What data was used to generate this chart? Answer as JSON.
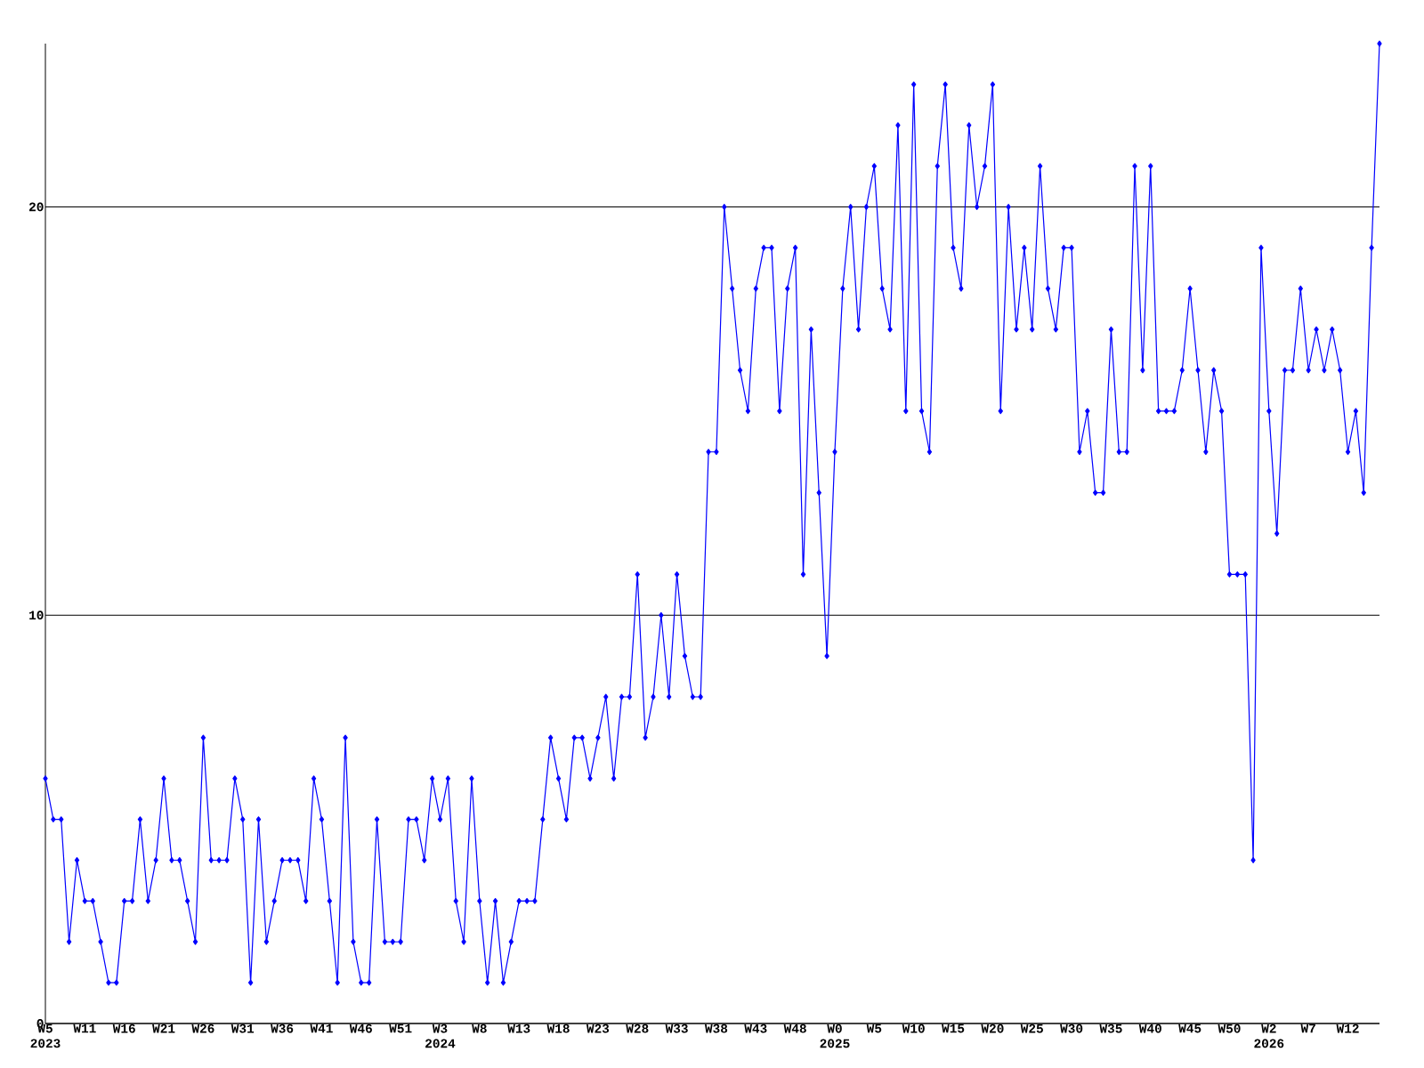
{
  "chart_data": {
    "type": "line",
    "categories": [
      "W5 2023",
      null,
      null,
      null,
      null,
      "W11",
      null,
      null,
      null,
      null,
      "W16",
      null,
      null,
      null,
      null,
      "W21",
      null,
      null,
      null,
      null,
      "W26",
      null,
      null,
      null,
      null,
      "W31",
      null,
      null,
      null,
      null,
      "W36",
      null,
      null,
      null,
      null,
      "W41",
      null,
      null,
      null,
      null,
      "W46",
      null,
      null,
      null,
      null,
      "W51",
      null,
      null,
      null,
      null,
      "W3 2024",
      null,
      null,
      null,
      null,
      "W8",
      null,
      null,
      null,
      null,
      "W13",
      null,
      null,
      null,
      null,
      "W18",
      null,
      null,
      null,
      null,
      "W23",
      null,
      null,
      null,
      null,
      "W28",
      null,
      null,
      null,
      null,
      "W33",
      null,
      null,
      null,
      null,
      "W38",
      null,
      null,
      null,
      null,
      "W43",
      null,
      null,
      null,
      null,
      "W48",
      null,
      null,
      null,
      null,
      "W0 2025",
      null,
      null,
      null,
      null,
      "W5",
      null,
      null,
      null,
      null,
      "W10",
      null,
      null,
      null,
      null,
      "W15",
      null,
      null,
      null,
      null,
      "W20",
      null,
      null,
      null,
      null,
      "W25",
      null,
      null,
      null,
      null,
      "W30",
      null,
      null,
      null,
      null,
      "W35",
      null,
      null,
      null,
      null,
      "W40",
      null,
      null,
      null,
      null,
      "W45",
      null,
      null,
      null,
      null,
      "W50",
      null,
      null,
      null,
      null,
      "W2 2026",
      null,
      null,
      null,
      null,
      "W7",
      null,
      null,
      null,
      null,
      "W12",
      null,
      null,
      null,
      null
    ],
    "values": [
      6,
      5,
      5,
      2,
      4,
      3,
      3,
      2,
      1,
      1,
      3,
      3,
      5,
      3,
      4,
      6,
      4,
      4,
      3,
      2,
      7,
      4,
      4,
      4,
      6,
      5,
      1,
      5,
      2,
      3,
      4,
      4,
      4,
      3,
      6,
      5,
      3,
      1,
      7,
      2,
      1,
      1,
      5,
      2,
      2,
      2,
      5,
      5,
      4,
      6,
      5,
      6,
      3,
      2,
      6,
      3,
      1,
      3,
      1,
      2,
      3,
      3,
      3,
      5,
      7,
      6,
      5,
      7,
      7,
      6,
      7,
      8,
      6,
      8,
      8,
      11,
      7,
      8,
      10,
      8,
      11,
      9,
      8,
      8,
      14,
      14,
      20,
      18,
      16,
      15,
      18,
      19,
      19,
      15,
      18,
      19,
      11,
      17,
      13,
      9,
      14,
      18,
      20,
      17,
      20,
      21,
      18,
      17,
      22,
      15,
      23,
      15,
      14,
      21,
      23,
      19,
      18,
      22,
      20,
      21,
      23,
      15,
      20,
      17,
      19,
      17,
      21,
      18,
      17,
      19,
      19,
      14,
      15,
      13,
      13,
      17,
      14,
      14,
      21,
      16,
      21,
      15,
      15,
      15,
      16,
      18,
      16,
      14,
      16,
      15,
      11,
      11,
      11,
      4,
      19,
      15,
      12,
      16,
      16,
      18,
      16,
      17,
      16,
      17,
      16,
      14,
      15,
      13,
      19,
      24
    ],
    "color": "#0000ff",
    "marker": "diamond",
    "line_style": "solid",
    "grid": "y",
    "ylim": [
      0,
      24
    ],
    "yticks": [
      0,
      10,
      20
    ]
  }
}
